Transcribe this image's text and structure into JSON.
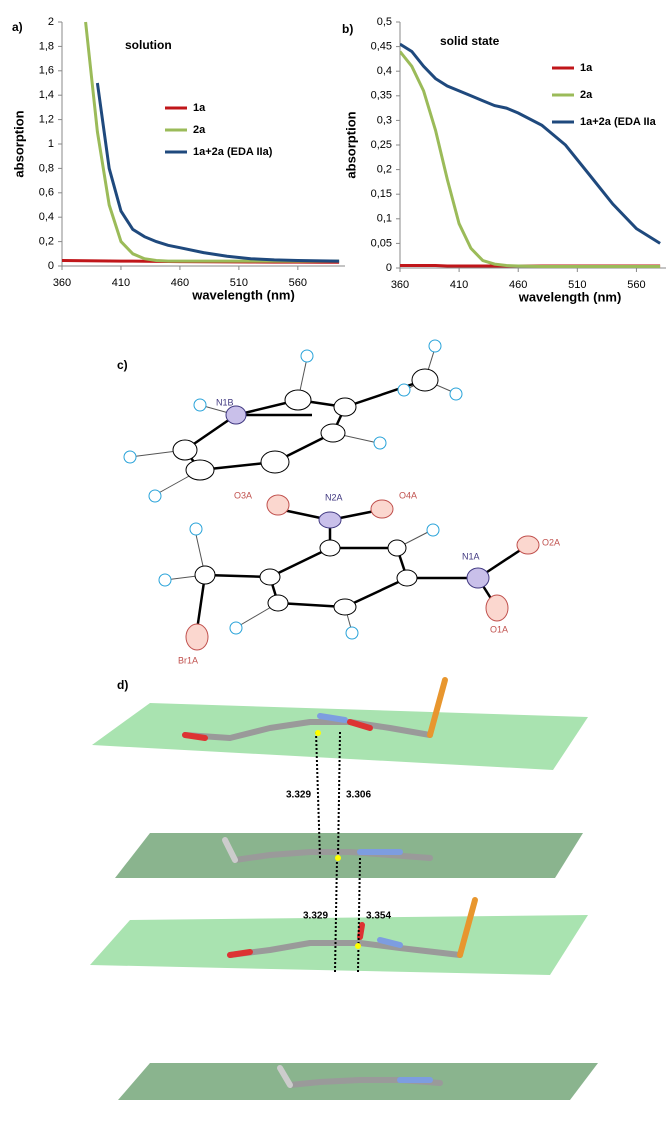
{
  "chart_data": [
    {
      "type": "line",
      "panel_label": "a)",
      "annotation": "solution",
      "x_label": "wavelength (nm)",
      "y_label": "absorption",
      "x": [
        360,
        370,
        380,
        390,
        400,
        410,
        420,
        430,
        440,
        450,
        460,
        480,
        500,
        520,
        540,
        560,
        580,
        595
      ],
      "series": [
        {
          "name": "1a",
          "color": "#c0161a",
          "values": [
            0.045,
            0.044,
            0.043,
            0.042,
            0.041,
            0.04,
            0.04,
            0.039,
            0.038,
            0.037,
            0.036,
            0.035,
            0.034,
            0.033,
            0.032,
            0.032,
            0.031,
            0.03
          ]
        },
        {
          "name": "2a",
          "color": "#9bbb59",
          "values": [
            null,
            null,
            2,
            1.1,
            0.5,
            0.2,
            0.1,
            0.06,
            0.045,
            0.04,
            0.04,
            0.04,
            0.04,
            0.04,
            0.04,
            0.04,
            0.04,
            0.04
          ]
        },
        {
          "name": "1a+2a (EDA IIa)",
          "color": "#1f497d",
          "values": [
            null,
            null,
            null,
            1.5,
            0.8,
            0.45,
            0.3,
            0.24,
            0.2,
            0.17,
            0.15,
            0.11,
            0.08,
            0.06,
            0.05,
            0.045,
            0.042,
            0.04
          ]
        }
      ],
      "xlim": [
        360,
        600
      ],
      "xticks": [
        360,
        410,
        460,
        510,
        560
      ],
      "ylim": [
        0,
        2
      ],
      "yticks": [
        0,
        {
          "value": 0.2,
          "label": "0,2"
        },
        {
          "value": 0.4,
          "label": "0,4"
        },
        {
          "value": 0.6,
          "label": "0,6"
        },
        {
          "value": 0.8,
          "label": "0,8"
        },
        1,
        {
          "value": 1.2,
          "label": "1,2"
        },
        {
          "value": 1.4,
          "label": "1,4"
        },
        {
          "value": 1.6,
          "label": "1,6"
        },
        {
          "value": 1.8,
          "label": "1,8"
        },
        2
      ]
    },
    {
      "type": "line",
      "panel_label": "b)",
      "annotation": "solid state",
      "x_label": "wavelength (nm)",
      "y_label": "absorption",
      "x": [
        360,
        370,
        380,
        390,
        400,
        410,
        420,
        430,
        440,
        450,
        460,
        480,
        500,
        520,
        540,
        560,
        580
      ],
      "series": [
        {
          "name": "1a",
          "color": "#c0161a",
          "values": [
            0.005,
            0.005,
            0.005,
            0.005,
            0.004,
            0.004,
            0.004,
            0.004,
            0.004,
            0.004,
            0.004,
            0.004,
            0.004,
            0.004,
            0.004,
            0.004,
            0.004
          ]
        },
        {
          "name": "2a",
          "color": "#9bbb59",
          "values": [
            0.44,
            0.41,
            0.36,
            0.28,
            0.18,
            0.09,
            0.04,
            0.015,
            0.008,
            0.005,
            0.004,
            0.003,
            0.003,
            0.003,
            0.003,
            0.003,
            0.003
          ]
        },
        {
          "name": "1a+2a (EDA IIa",
          "color": "#1f497d",
          "values": [
            0.455,
            0.44,
            0.41,
            0.385,
            0.37,
            0.36,
            0.35,
            0.34,
            0.33,
            0.325,
            0.315,
            0.29,
            0.25,
            0.19,
            0.13,
            0.08,
            0.05
          ]
        }
      ],
      "xlim": [
        360,
        585
      ],
      "xticks": [
        360,
        410,
        460,
        510,
        560
      ],
      "ylim": [
        0,
        0.5
      ],
      "yticks": [
        0,
        {
          "value": 0.05,
          "label": "0,05"
        },
        {
          "value": 0.1,
          "label": "0,1"
        },
        {
          "value": 0.15,
          "label": "0,15"
        },
        {
          "value": 0.2,
          "label": "0,2"
        },
        {
          "value": 0.25,
          "label": "0,25"
        },
        {
          "value": 0.3,
          "label": "0,3"
        },
        {
          "value": 0.35,
          "label": "0,35"
        },
        {
          "value": 0.4,
          "label": "0,4"
        },
        {
          "value": 0.45,
          "label": "0,45"
        },
        {
          "value": 0.5,
          "label": "0,5"
        }
      ]
    }
  ],
  "panel_c": {
    "label": "c)",
    "atoms": [
      "N1B",
      "O3A",
      "N2A",
      "O4A",
      "N1A",
      "O2A",
      "O1A",
      "Br1A"
    ]
  },
  "panel_d": {
    "label": "d)",
    "distances": [
      "3.329",
      "3.306",
      "3.329",
      "3.354"
    ]
  }
}
